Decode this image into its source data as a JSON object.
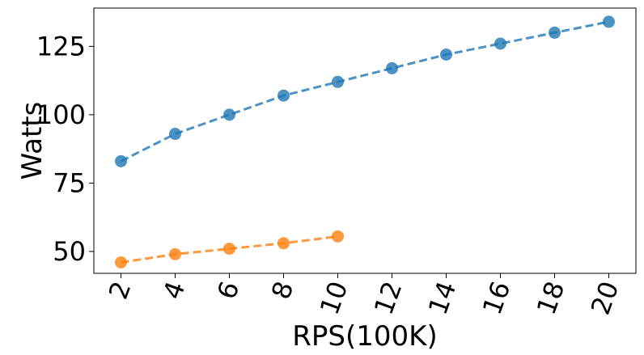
{
  "chart_data": {
    "type": "line",
    "title": "",
    "xlabel": "RPS(100K)",
    "ylabel": "Watts",
    "x_ticks": [
      "2",
      "4",
      "6",
      "8",
      "10",
      "12",
      "14",
      "16",
      "18",
      "20"
    ],
    "y_ticks": [
      "50",
      "75",
      "100",
      "125"
    ],
    "xlim": [
      1,
      21
    ],
    "ylim": [
      42,
      139
    ],
    "grid": false,
    "legend": "none",
    "line_style": "dashed",
    "marker": "circle",
    "series": [
      {
        "color": "#1f77b4",
        "x": [
          2,
          4,
          6,
          8,
          10,
          12,
          14,
          16,
          18,
          20
        ],
        "y": [
          83,
          93,
          100,
          107,
          112,
          117,
          122,
          126,
          130,
          134
        ]
      },
      {
        "color": "#ff7f0e",
        "x": [
          2,
          4,
          6,
          8,
          10
        ],
        "y": [
          46,
          49,
          51,
          53,
          55.5
        ]
      }
    ]
  }
}
